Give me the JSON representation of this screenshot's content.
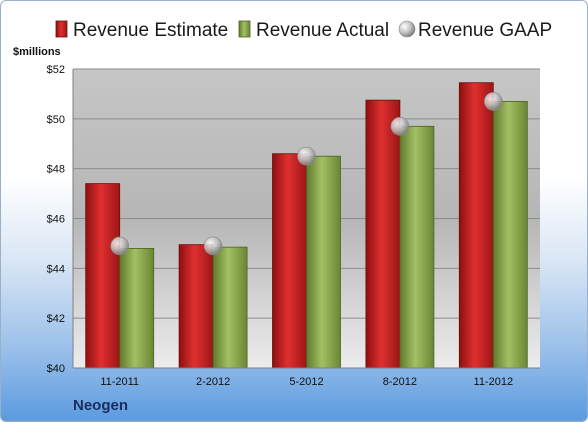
{
  "company": "Neogen",
  "chart_data": {
    "type": "bar",
    "ylabel": "$millions",
    "categories": [
      "11-2011",
      "2-2012",
      "5-2012",
      "8-2012",
      "11-2012"
    ],
    "ylim": [
      40,
      52
    ],
    "yticks": [
      40,
      42,
      44,
      46,
      48,
      50,
      52
    ],
    "ytick_prefix": "$",
    "grid": true,
    "legend_position": "top",
    "series": [
      {
        "name": "Revenue Estimate",
        "type": "bar",
        "color": "#c81e1e",
        "values": [
          47.4,
          44.95,
          48.6,
          50.75,
          51.45
        ]
      },
      {
        "name": "Revenue Actual",
        "type": "bar",
        "color": "#8aa54a",
        "values": [
          44.8,
          44.85,
          48.5,
          49.7,
          50.7
        ]
      },
      {
        "name": "Revenue GAAP",
        "type": "scatter",
        "color": "#b8b8b8",
        "values": [
          44.9,
          44.9,
          48.5,
          49.7,
          50.7
        ]
      }
    ]
  }
}
